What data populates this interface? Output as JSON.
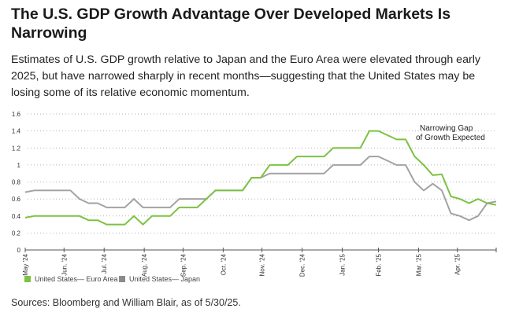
{
  "title": "The U.S. GDP Growth Advantage Over Developed Markets Is Narrowing",
  "subtitle": "Estimates of U.S. GDP growth relative to Japan and the Euro Area were elevated through early 2025, but have narrowed sharply in recent months—suggesting that the United States may be losing some of its relative economic momentum.",
  "source": "Sources: Bloomberg and William Blair, as of 5/30/25.",
  "chart_data": {
    "type": "line",
    "title": "",
    "xlabel": "",
    "ylabel": "",
    "ylim": [
      0,
      1.6
    ],
    "yticks": [
      "0",
      "0.2",
      "0.4",
      "0.6",
      "0.8",
      "1",
      "1.2",
      "1.4",
      "1.6"
    ],
    "xticks": [
      "May '24",
      "Jun. '24",
      "Jul. '24",
      "Aug. '24",
      "Sep. '24",
      "Oct. '24",
      "Nov. '24",
      "Dec. '24",
      "Jan. '25",
      "Feb. '25",
      "Mar. '25",
      "Apr. '25"
    ],
    "grid": "horizontal dotted",
    "legend_position": "bottom-left",
    "annotation": [
      "Narrowing Gap",
      "of Growth Expected"
    ],
    "x": [
      "2024-05-31",
      "2024-06-07",
      "2024-06-14",
      "2024-06-21",
      "2024-06-28",
      "2024-07-05",
      "2024-07-12",
      "2024-07-19",
      "2024-07-26",
      "2024-08-02",
      "2024-08-09",
      "2024-08-16",
      "2024-08-23",
      "2024-08-30",
      "2024-09-06",
      "2024-09-13",
      "2024-09-20",
      "2024-09-27",
      "2024-10-04",
      "2024-10-11",
      "2024-10-18",
      "2024-10-25",
      "2024-11-01",
      "2024-11-08",
      "2024-11-15",
      "2024-11-22",
      "2024-11-29",
      "2024-12-06",
      "2024-12-13",
      "2024-12-20",
      "2024-12-27",
      "2025-01-03",
      "2025-01-10",
      "2025-01-17",
      "2025-01-24",
      "2025-01-31",
      "2025-02-07",
      "2025-02-14",
      "2025-02-21",
      "2025-02-28",
      "2025-03-07",
      "2025-03-14",
      "2025-03-21",
      "2025-03-28",
      "2025-04-04",
      "2025-04-11",
      "2025-04-18",
      "2025-04-25",
      "2025-05-02",
      "2025-05-09",
      "2025-05-16",
      "2025-05-23",
      "2025-05-30"
    ],
    "series": [
      {
        "name": "United States— Euro Area",
        "color": "#7cc242",
        "values": [
          0.38,
          0.4,
          0.4,
          0.4,
          0.4,
          0.4,
          0.4,
          0.35,
          0.35,
          0.3,
          0.3,
          0.3,
          0.4,
          0.3,
          0.4,
          0.4,
          0.4,
          0.5,
          0.5,
          0.5,
          0.6,
          0.7,
          0.7,
          0.7,
          0.7,
          0.85,
          0.85,
          1.0,
          1.0,
          1.0,
          1.1,
          1.1,
          1.1,
          1.1,
          1.2,
          1.2,
          1.2,
          1.2,
          1.4,
          1.4,
          1.35,
          1.3,
          1.3,
          1.1,
          1.0,
          0.88,
          0.89,
          0.63,
          0.6,
          0.55,
          0.6,
          0.55,
          0.53
        ]
      },
      {
        "name": "United States— Japan",
        "color": "#a3a3a3",
        "values": [
          0.68,
          0.7,
          0.7,
          0.7,
          0.7,
          0.7,
          0.6,
          0.55,
          0.55,
          0.5,
          0.5,
          0.5,
          0.6,
          0.5,
          0.5,
          0.5,
          0.5,
          0.6,
          0.6,
          0.6,
          0.6,
          0.7,
          0.7,
          0.7,
          0.7,
          0.85,
          0.85,
          0.9,
          0.9,
          0.9,
          0.9,
          0.9,
          0.9,
          0.9,
          1.0,
          1.0,
          1.0,
          1.0,
          1.1,
          1.1,
          1.05,
          1.0,
          1.0,
          0.8,
          0.7,
          0.78,
          0.7,
          0.43,
          0.4,
          0.35,
          0.4,
          0.55,
          0.57
        ]
      }
    ]
  }
}
